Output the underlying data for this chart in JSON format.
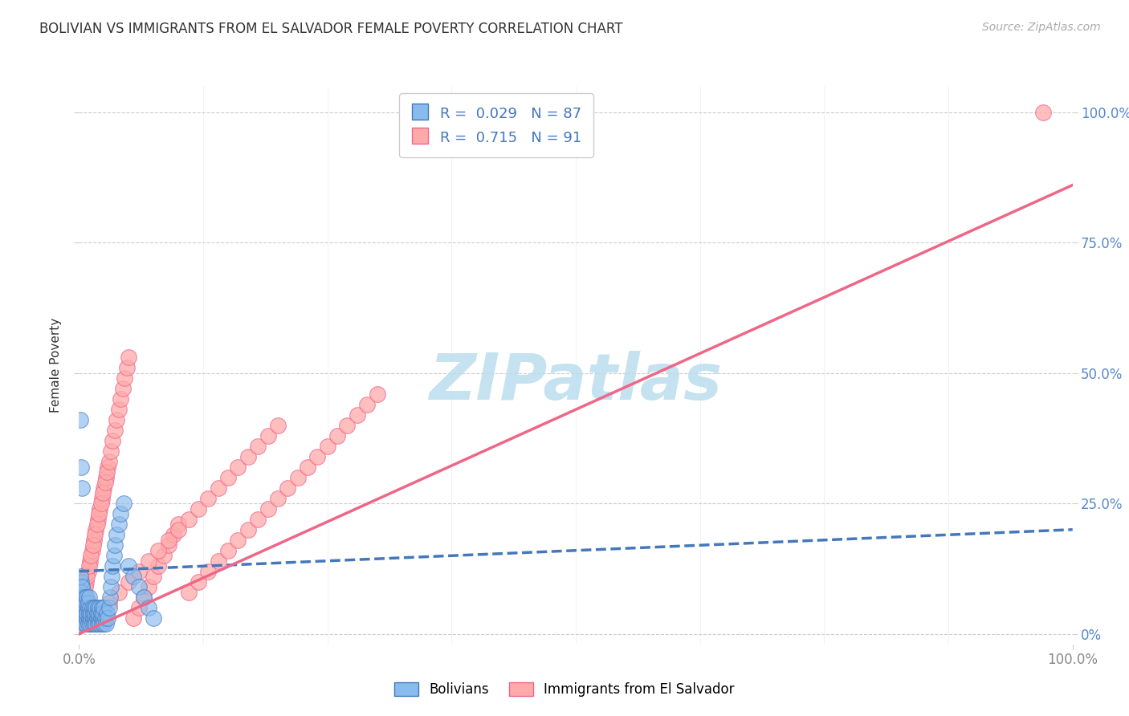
{
  "title": "BOLIVIAN VS IMMIGRANTS FROM EL SALVADOR FEMALE POVERTY CORRELATION CHART",
  "source": "Source: ZipAtlas.com",
  "ylabel": "Female Poverty",
  "xlim": [
    0,
    1
  ],
  "ylim": [
    -0.02,
    1.05
  ],
  "ytick_positions": [
    0,
    0.25,
    0.5,
    0.75,
    1.0
  ],
  "ytick_right_labels": [
    "0%",
    "25.0%",
    "50.0%",
    "75.0%",
    "100.0%"
  ],
  "xtick_positions": [
    0,
    1
  ],
  "xtick_labels": [
    "0.0%",
    "100.0%"
  ],
  "legend_label1": "R =  0.029   N = 87",
  "legend_label2": "R =  0.715   N = 91",
  "color_blue": "#88BBEE",
  "color_pink": "#FFAAAA",
  "color_blue_dark": "#4477BB",
  "color_pink_dark": "#EE6688",
  "watermark": "ZIPatlas",
  "watermark_color": "#BBDDEE",
  "blue_trend_x": [
    0.0,
    1.0
  ],
  "blue_trend_y": [
    0.12,
    0.2
  ],
  "pink_trend_x": [
    0.0,
    1.0
  ],
  "pink_trend_y": [
    0.0,
    0.86
  ],
  "scatter_blue_x": [
    0.001,
    0.002,
    0.001,
    0.003,
    0.002,
    0.001,
    0.004,
    0.003,
    0.002,
    0.001,
    0.005,
    0.004,
    0.003,
    0.002,
    0.006,
    0.005,
    0.004,
    0.003,
    0.007,
    0.006,
    0.005,
    0.008,
    0.007,
    0.006,
    0.009,
    0.008,
    0.007,
    0.01,
    0.009,
    0.008,
    0.011,
    0.01,
    0.009,
    0.012,
    0.011,
    0.01,
    0.013,
    0.012,
    0.014,
    0.013,
    0.015,
    0.014,
    0.016,
    0.015,
    0.017,
    0.016,
    0.018,
    0.017,
    0.019,
    0.018,
    0.02,
    0.019,
    0.021,
    0.02,
    0.022,
    0.021,
    0.023,
    0.022,
    0.024,
    0.023,
    0.025,
    0.024,
    0.026,
    0.025,
    0.027,
    0.028,
    0.029,
    0.03,
    0.031,
    0.032,
    0.033,
    0.034,
    0.035,
    0.036,
    0.038,
    0.04,
    0.042,
    0.045,
    0.05,
    0.055,
    0.06,
    0.065,
    0.07,
    0.075,
    0.001,
    0.002,
    0.003
  ],
  "scatter_blue_y": [
    0.02,
    0.03,
    0.05,
    0.04,
    0.06,
    0.08,
    0.07,
    0.09,
    0.1,
    0.11,
    0.02,
    0.04,
    0.06,
    0.08,
    0.03,
    0.05,
    0.07,
    0.09,
    0.02,
    0.04,
    0.06,
    0.03,
    0.05,
    0.07,
    0.02,
    0.04,
    0.06,
    0.03,
    0.05,
    0.07,
    0.02,
    0.04,
    0.06,
    0.03,
    0.05,
    0.07,
    0.02,
    0.04,
    0.03,
    0.05,
    0.02,
    0.04,
    0.03,
    0.05,
    0.02,
    0.04,
    0.03,
    0.05,
    0.02,
    0.04,
    0.03,
    0.05,
    0.02,
    0.04,
    0.03,
    0.05,
    0.02,
    0.04,
    0.03,
    0.05,
    0.02,
    0.04,
    0.03,
    0.05,
    0.02,
    0.04,
    0.03,
    0.05,
    0.07,
    0.09,
    0.11,
    0.13,
    0.15,
    0.17,
    0.19,
    0.21,
    0.23,
    0.25,
    0.13,
    0.11,
    0.09,
    0.07,
    0.05,
    0.03,
    0.41,
    0.32,
    0.28
  ],
  "scatter_pink_x": [
    0.001,
    0.003,
    0.005,
    0.007,
    0.009,
    0.011,
    0.013,
    0.015,
    0.017,
    0.019,
    0.021,
    0.023,
    0.025,
    0.027,
    0.029,
    0.002,
    0.004,
    0.006,
    0.008,
    0.01,
    0.012,
    0.014,
    0.016,
    0.018,
    0.02,
    0.022,
    0.024,
    0.026,
    0.028,
    0.03,
    0.032,
    0.034,
    0.036,
    0.038,
    0.04,
    0.042,
    0.044,
    0.046,
    0.048,
    0.05,
    0.055,
    0.06,
    0.065,
    0.07,
    0.075,
    0.08,
    0.085,
    0.09,
    0.095,
    0.1,
    0.11,
    0.12,
    0.13,
    0.14,
    0.15,
    0.16,
    0.17,
    0.18,
    0.19,
    0.2,
    0.21,
    0.22,
    0.23,
    0.24,
    0.25,
    0.26,
    0.27,
    0.28,
    0.29,
    0.3,
    0.01,
    0.02,
    0.03,
    0.04,
    0.05,
    0.06,
    0.07,
    0.08,
    0.09,
    0.1,
    0.11,
    0.12,
    0.13,
    0.14,
    0.15,
    0.16,
    0.17,
    0.18,
    0.19,
    0.2,
    0.97
  ],
  "scatter_pink_y": [
    0.04,
    0.06,
    0.08,
    0.1,
    0.12,
    0.14,
    0.16,
    0.18,
    0.2,
    0.22,
    0.24,
    0.26,
    0.28,
    0.3,
    0.32,
    0.05,
    0.07,
    0.09,
    0.11,
    0.13,
    0.15,
    0.17,
    0.19,
    0.21,
    0.23,
    0.25,
    0.27,
    0.29,
    0.31,
    0.33,
    0.35,
    0.37,
    0.39,
    0.41,
    0.43,
    0.45,
    0.47,
    0.49,
    0.51,
    0.53,
    0.03,
    0.05,
    0.07,
    0.09,
    0.11,
    0.13,
    0.15,
    0.17,
    0.19,
    0.21,
    0.08,
    0.1,
    0.12,
    0.14,
    0.16,
    0.18,
    0.2,
    0.22,
    0.24,
    0.26,
    0.28,
    0.3,
    0.32,
    0.34,
    0.36,
    0.38,
    0.4,
    0.42,
    0.44,
    0.46,
    0.02,
    0.04,
    0.06,
    0.08,
    0.1,
    0.12,
    0.14,
    0.16,
    0.18,
    0.2,
    0.22,
    0.24,
    0.26,
    0.28,
    0.3,
    0.32,
    0.34,
    0.36,
    0.38,
    0.4,
    1.0
  ]
}
